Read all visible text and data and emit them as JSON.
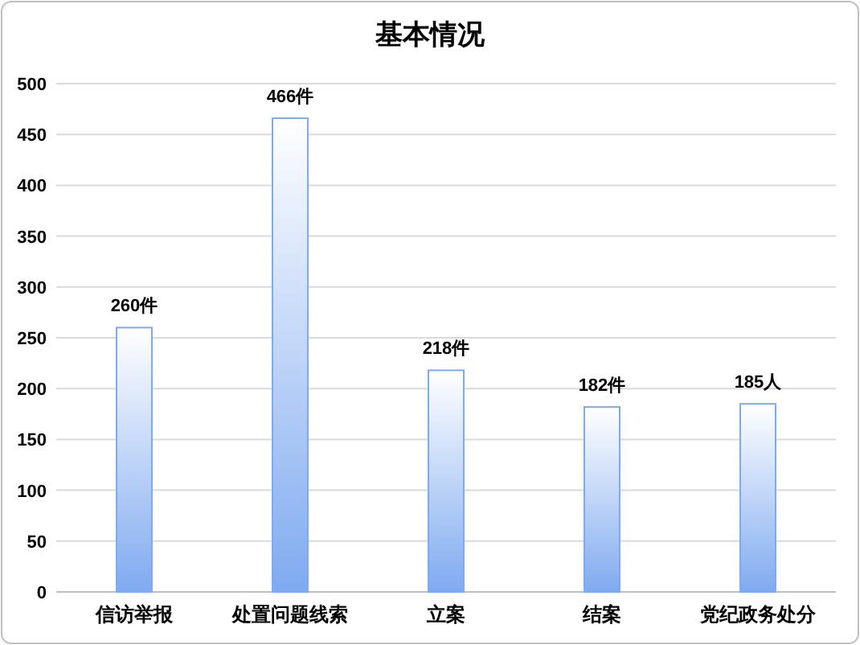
{
  "chart_data": {
    "type": "bar",
    "title": "基本情况",
    "categories": [
      "信访举报",
      "处置问题线索",
      "立案",
      "结案",
      "党纪政务处分"
    ],
    "values": [
      260,
      466,
      218,
      182,
      185
    ],
    "value_labels": [
      "260件",
      "466件",
      "218件",
      "182件",
      "185人"
    ],
    "color": "#7faaf0",
    "ylim": [
      0,
      500
    ],
    "yticks": [
      0,
      50,
      100,
      150,
      200,
      250,
      300,
      350,
      400,
      450,
      500
    ],
    "grid": "y"
  }
}
